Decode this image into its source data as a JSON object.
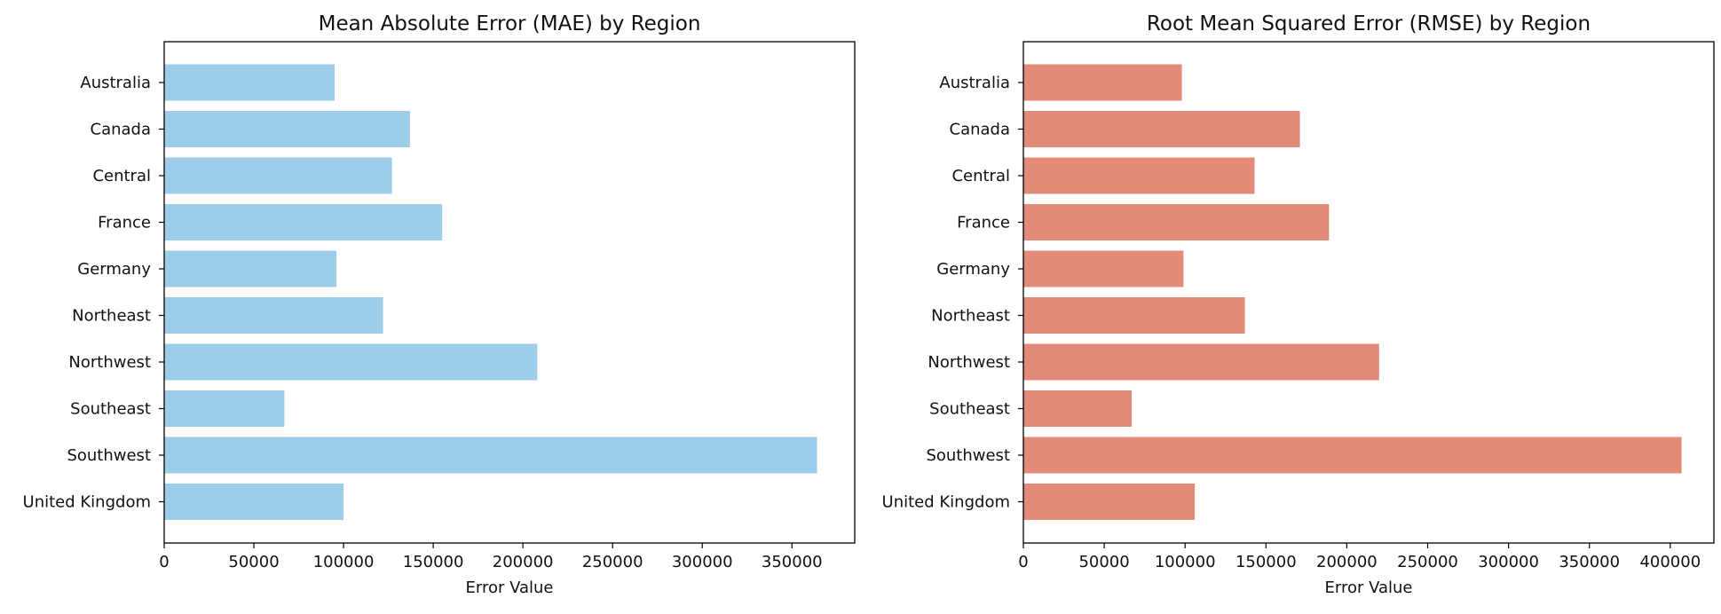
{
  "chart_data": [
    {
      "type": "bar",
      "orientation": "horizontal",
      "title": "Mean Absolute Error (MAE) by Region",
      "xlabel": "Error Value",
      "ylabel": "",
      "categories": [
        "Australia",
        "Canada",
        "Central",
        "France",
        "Germany",
        "Northeast",
        "Northwest",
        "Southeast",
        "Southwest",
        "United Kingdom"
      ],
      "values": [
        95000,
        137000,
        127000,
        155000,
        96000,
        122000,
        208000,
        67000,
        364000,
        100000
      ],
      "xlim": [
        0,
        385000
      ],
      "xticks": [
        0,
        50000,
        100000,
        150000,
        200000,
        250000,
        300000,
        350000
      ],
      "xtick_labels": [
        "0",
        "50000",
        "100000",
        "150000",
        "200000",
        "250000",
        "300000",
        "350000"
      ],
      "color": "#9ecde9",
      "grid": false
    },
    {
      "type": "bar",
      "orientation": "horizontal",
      "title": "Root Mean Squared Error (RMSE) by Region",
      "xlabel": "Error Value",
      "ylabel": "",
      "categories": [
        "Australia",
        "Canada",
        "Central",
        "France",
        "Germany",
        "Northeast",
        "Northwest",
        "Southeast",
        "Southwest",
        "United Kingdom"
      ],
      "values": [
        98000,
        171000,
        143000,
        189000,
        99000,
        137000,
        220000,
        67000,
        407000,
        106000
      ],
      "xlim": [
        0,
        427000
      ],
      "xticks": [
        0,
        50000,
        100000,
        150000,
        200000,
        250000,
        300000,
        350000,
        400000
      ],
      "xtick_labels": [
        "0",
        "50000",
        "100000",
        "150000",
        "200000",
        "250000",
        "300000",
        "350000",
        "400000"
      ],
      "color": "#e38a79",
      "grid": false
    }
  ]
}
